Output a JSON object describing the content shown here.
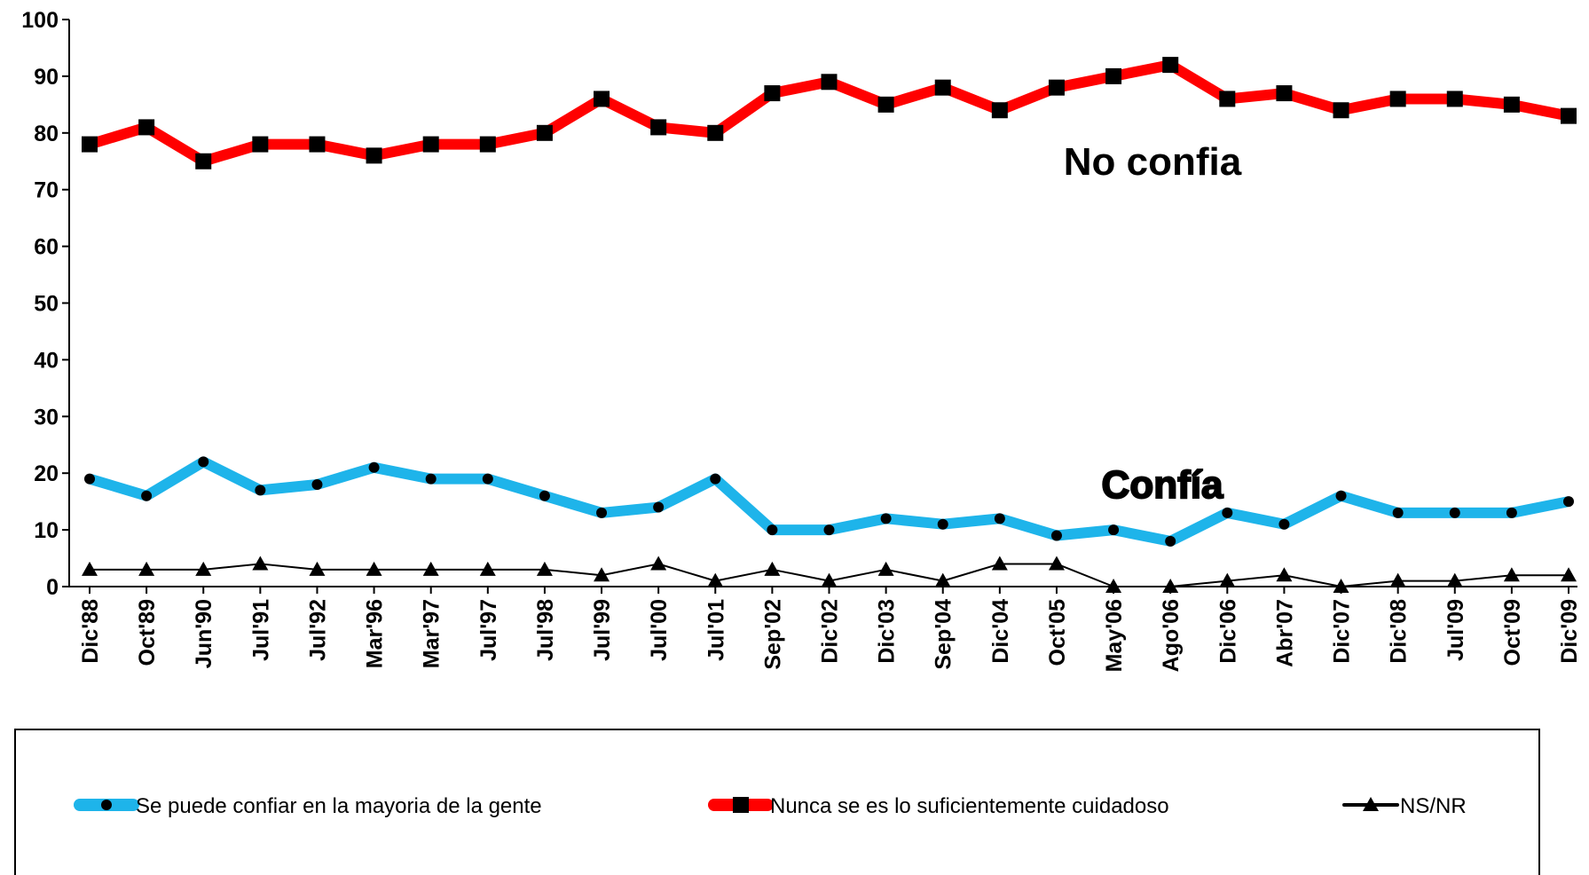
{
  "chart_data": {
    "type": "line",
    "categories": [
      "Dic'88",
      "Oct'89",
      "Jun'90",
      "Jul'91",
      "Jul'92",
      "Mar'96",
      "Mar'97",
      "Jul'97",
      "Jul'98",
      "Jul'99",
      "Jul'00",
      "Jul'01",
      "Sep'02",
      "Dic'02",
      "Dic'03",
      "Sep'04",
      "Dic'04",
      "Oct'05",
      "May'06",
      "Ago'06",
      "Dic'06",
      "Abr'07",
      "Dic'07",
      "Dic'08",
      "Jul'09",
      "Oct'09",
      "Dic'09"
    ],
    "series": [
      {
        "name": "Se puede confiar en  la mayoria de la gente",
        "color": "#1eb4ea",
        "marker": "circle",
        "values": [
          19,
          16,
          22,
          17,
          18,
          21,
          19,
          19,
          16,
          13,
          14,
          19,
          10,
          10,
          12,
          11,
          12,
          9,
          10,
          8,
          13,
          11,
          16,
          13,
          13,
          13,
          15
        ]
      },
      {
        "name": "Nunca se es lo suficientemente cuidadoso",
        "color": "#ff0000",
        "marker": "square",
        "values": [
          78,
          81,
          75,
          78,
          78,
          76,
          78,
          78,
          80,
          86,
          81,
          80,
          87,
          89,
          85,
          88,
          84,
          88,
          90,
          92,
          86,
          87,
          84,
          86,
          86,
          85,
          83
        ]
      },
      {
        "name": "NS/NR",
        "color": "#000000",
        "marker": "triangle",
        "values": [
          3,
          3,
          3,
          4,
          3,
          3,
          3,
          3,
          3,
          2,
          4,
          1,
          3,
          1,
          3,
          1,
          4,
          4,
          0,
          0,
          1,
          2,
          0,
          1,
          1,
          2,
          2
        ]
      }
    ],
    "annotations": [
      "No confia",
      "Confía"
    ],
    "ylim": [
      0,
      100
    ],
    "yticks": [
      0,
      10,
      20,
      30,
      40,
      50,
      60,
      70,
      80,
      90,
      100
    ],
    "legend": "bottom"
  }
}
